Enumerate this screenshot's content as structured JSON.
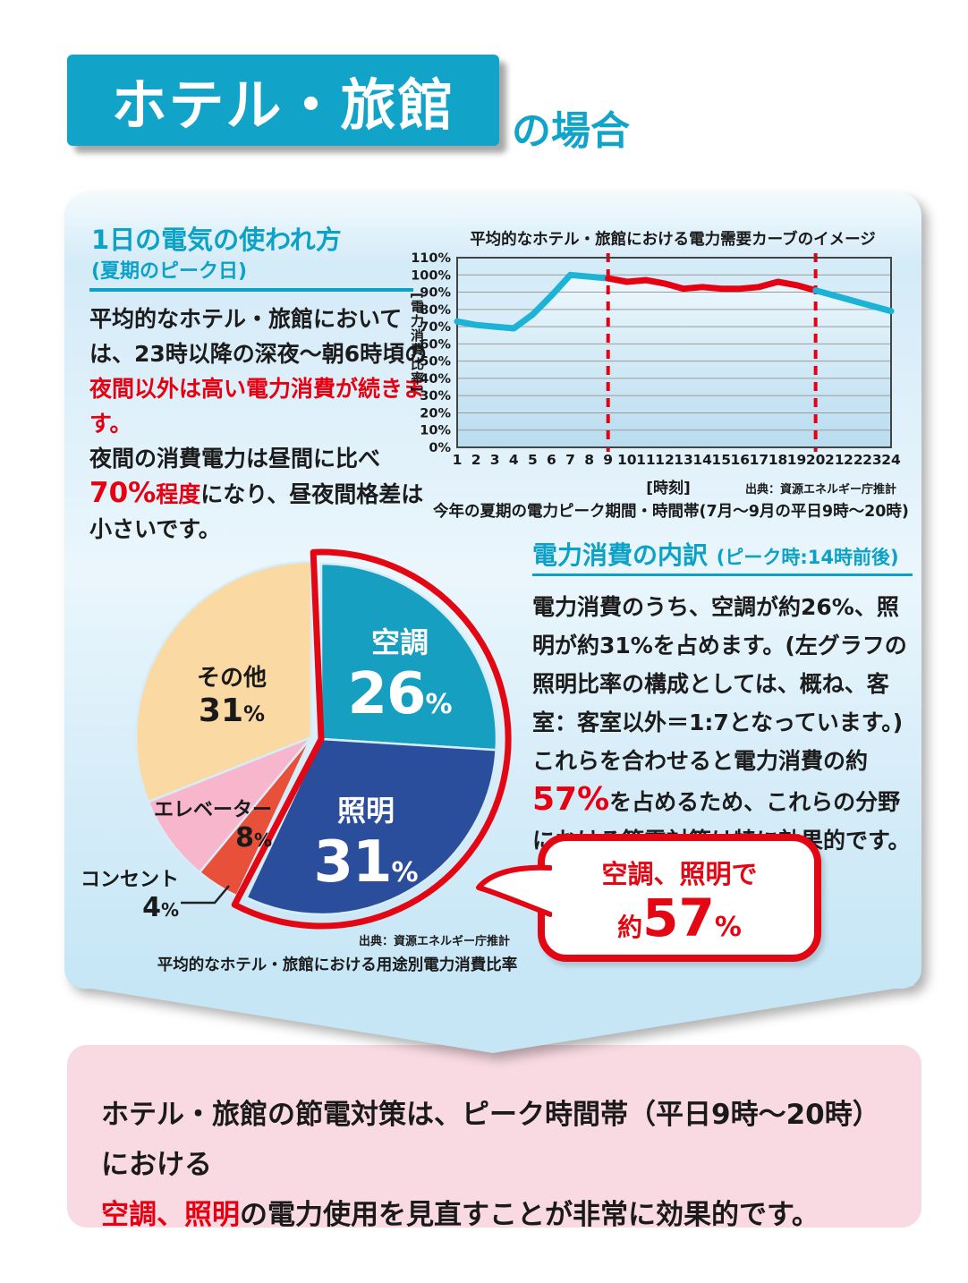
{
  "page_title": {
    "label": "ホテル・旅館",
    "suffix": "の場合"
  },
  "percent_sign": "%",
  "left_section": {
    "heading": "1日の電気の使われ方",
    "subheading": "(夏期のピーク日)",
    "p1": "平均的なホテル・旅館においては、23時以降の深夜〜朝6時頃の",
    "r1": "夜間以外は高い電力消費が続きます。",
    "p2": "夜間の消費電力は昼間に比べ",
    "r2_num": "70%",
    "r2_rest": "程度",
    "p3": "になり、昼夜間格差は小さいです。"
  },
  "breakdown_section": {
    "heading": "電力消費の内訳",
    "heading_note": "(ピーク時:14時前後)",
    "p1": "電力消費のうち、空調が約26%、照明が約31%を占めます。(左グラフの照明比率の構成としては、概ね、客室：客室以外＝1:7となっています。)",
    "p2": "これらを合わせると電力消費の約",
    "r1": "57%",
    "p3": "を占めるため、これらの分野における節電対策は特に効果的です。"
  },
  "bubble": {
    "line1": "空調、照明で",
    "approx": "約",
    "value": "57"
  },
  "bottom_box": {
    "line1": "ホテル・旅館の節電対策は、ピーク時間帯（平日9時〜20時）における",
    "red": "空調、照明",
    "line2": "の電力使用を見直すことが非常に効果的です。"
  },
  "chart_data": [
    {
      "type": "line",
      "title": "平均的なホテル・旅館における電力需要カーブのイメージ",
      "x": [
        1,
        2,
        3,
        4,
        5,
        6,
        7,
        8,
        9,
        10,
        11,
        12,
        13,
        14,
        15,
        16,
        17,
        18,
        19,
        20,
        21,
        22,
        23,
        24
      ],
      "series": [
        {
          "name": "電力消費比率",
          "values": [
            73,
            71,
            70,
            69,
            77,
            88,
            100,
            99,
            98,
            96,
            97,
            95,
            92,
            93,
            92,
            92,
            93,
            96,
            94,
            91,
            88,
            85,
            82,
            79
          ]
        }
      ],
      "ylabel": "[電力消費比率]",
      "xlabel": "[時刻]",
      "ylim": [
        0,
        110
      ],
      "y_tick_labels": [
        "110%",
        "100%",
        "90%",
        "80%",
        "70%",
        "60%",
        "50%",
        "40%",
        "30%",
        "20%",
        "10%",
        "0%"
      ],
      "grid": true,
      "peak_hours": [
        9,
        20
      ],
      "line_color": "#1cb3d6",
      "peak_color": "#e60012",
      "source": "出典：資源エネルギー庁推計",
      "caption": "今年の夏期の電力ピーク期間・時間帯(7月〜9月の平日9時〜20時)"
    },
    {
      "type": "pie",
      "title": "平均的なホテル・旅館における用途別電力消費比率",
      "slices": [
        {
          "label": "空調",
          "value": 26,
          "color": "#169fc0"
        },
        {
          "label": "照明",
          "value": 31,
          "color": "#2a4d9c"
        },
        {
          "label": "コンセント",
          "value": 4,
          "color": "#e8503a"
        },
        {
          "label": "エレベーター",
          "value": 8,
          "color": "#f7b6cb"
        },
        {
          "label": "その他",
          "value": 31,
          "color": "#fbd9a2"
        }
      ],
      "highlight": {
        "labels": [
          "空調",
          "照明"
        ],
        "total_value": 57,
        "total_label": "約57%",
        "outline_color": "#e30613"
      },
      "source": "出典：資源エネルギー庁推計"
    }
  ]
}
